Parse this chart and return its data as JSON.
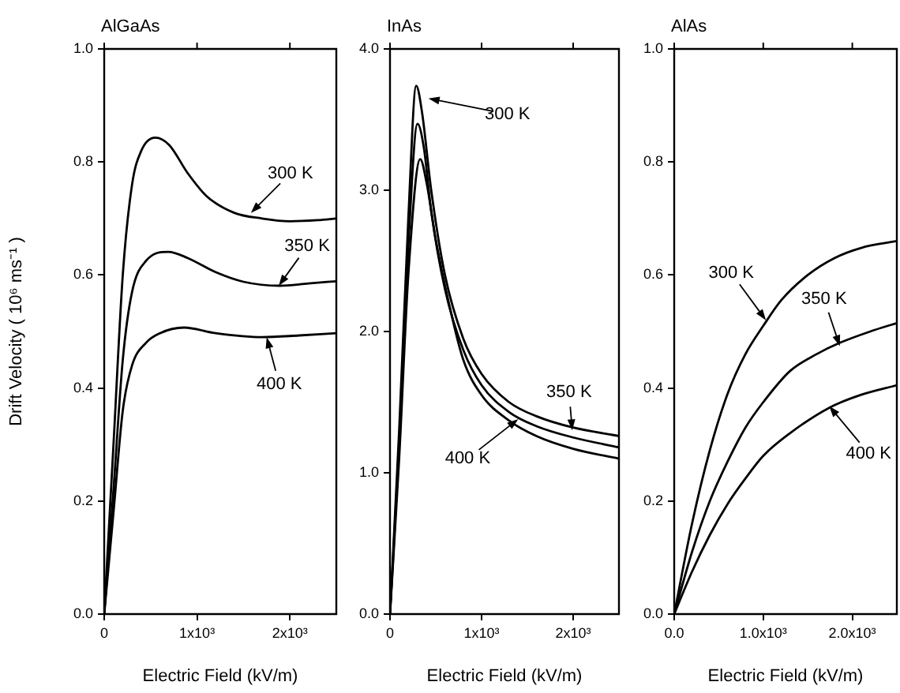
{
  "chart_data": [
    {
      "type": "line",
      "title": "AlGaAs",
      "xlabel": "Electric Field (kV/m)",
      "ylabel": "Drift Velocity ( 10⁶ ms⁻¹ )",
      "xlim": [
        0,
        2500
      ],
      "xticks": [
        0,
        {
          "value": 1000,
          "label": "1x10³"
        },
        {
          "value": 2000,
          "label": "2x10³"
        }
      ],
      "ylim": [
        0,
        1
      ],
      "yticks": [
        {
          "value": 0,
          "label": "0.0"
        },
        0.2,
        0.4,
        0.6,
        0.8,
        {
          "value": 1,
          "label": "1.0"
        }
      ],
      "grid": false,
      "legend": false,
      "marker": "none",
      "line_style": "solid",
      "series": [
        {
          "color": "#000000",
          "x": [
            0,
            100,
            200,
            300,
            400,
            550,
            700,
            900,
            1100,
            1400,
            1700,
            2000,
            2300,
            2500
          ],
          "values": [
            0,
            0.3,
            0.6,
            0.76,
            0.82,
            0.843,
            0.83,
            0.78,
            0.74,
            0.71,
            0.7,
            0.695,
            0.697,
            0.7
          ]
        },
        {
          "color": "#000000",
          "x": [
            0,
            100,
            200,
            300,
            450,
            690,
            900,
            1200,
            1500,
            1890,
            2200,
            2500
          ],
          "values": [
            0,
            0.22,
            0.45,
            0.57,
            0.625,
            0.641,
            0.63,
            0.605,
            0.588,
            0.581,
            0.585,
            0.589
          ]
        },
        {
          "color": "#000000",
          "x": [
            0,
            100,
            200,
            300,
            450,
            600,
            860,
            1200,
            1700,
            2100,
            2500
          ],
          "values": [
            0,
            0.18,
            0.36,
            0.44,
            0.48,
            0.497,
            0.507,
            0.497,
            0.49,
            0.493,
            0.497
          ]
        }
      ],
      "annotations": [
        {
          "text": "300 K",
          "x": 1580,
          "y": 0.71
        },
        {
          "text": "350 K",
          "x": 1880,
          "y": 0.581
        },
        {
          "text": "400 K",
          "x": 1750,
          "y": 0.49
        }
      ]
    },
    {
      "type": "line",
      "title": "InAs",
      "xlabel": "Electric Field (kV/m)",
      "xlim": [
        0,
        2500
      ],
      "xticks": [
        0,
        {
          "value": 1000,
          "label": "1x10³"
        },
        {
          "value": 2000,
          "label": "2x10³"
        }
      ],
      "ylim": [
        0,
        4
      ],
      "yticks": [
        {
          "value": 0,
          "label": "0.0"
        },
        {
          "value": 1,
          "label": "1.0"
        },
        {
          "value": 2,
          "label": "2.0"
        },
        {
          "value": 3,
          "label": "3.0"
        },
        {
          "value": 4,
          "label": "4.0"
        }
      ],
      "grid": false,
      "legend": false,
      "marker": "none",
      "line_style": "solid",
      "series": [
        {
          "color": "#000000",
          "x": [
            0,
            100,
            200,
            286,
            350,
            450,
            600,
            800,
            1000,
            1300,
            1600,
            2000,
            2500
          ],
          "values": [
            0,
            1.3,
            2.8,
            3.74,
            3.55,
            3.0,
            2.4,
            1.95,
            1.7,
            1.5,
            1.4,
            1.32,
            1.26
          ]
        },
        {
          "color": "#000000",
          "x": [
            0,
            100,
            200,
            300,
            370,
            450,
            600,
            800,
            1000,
            1300,
            1600,
            2000,
            2500
          ],
          "values": [
            0,
            1.2,
            2.6,
            3.47,
            3.3,
            2.85,
            2.3,
            1.87,
            1.62,
            1.43,
            1.33,
            1.25,
            1.18
          ]
        },
        {
          "color": "#000000",
          "x": [
            0,
            100,
            200,
            330,
            400,
            500,
            650,
            800,
            1000,
            1300,
            1600,
            2000,
            2500
          ],
          "values": [
            0,
            1.1,
            2.4,
            3.22,
            3.05,
            2.65,
            2.18,
            1.8,
            1.55,
            1.37,
            1.26,
            1.17,
            1.1
          ]
        }
      ],
      "annotations": [
        {
          "text": "300 K",
          "x": 420,
          "y": 3.65
        },
        {
          "text": "350 K",
          "x": 1990,
          "y": 1.3
        },
        {
          "text": "400 K",
          "x": 1400,
          "y": 1.38
        }
      ]
    },
    {
      "type": "line",
      "title": "AlAs",
      "xlabel": "Electric Field (kV/m)",
      "xlim": [
        0,
        2500
      ],
      "xticks": [
        {
          "value": 0,
          "label": "0.0"
        },
        {
          "value": 1000,
          "label": "1.0x10³"
        },
        {
          "value": 2000,
          "label": "2.0x10³"
        }
      ],
      "ylim": [
        0,
        1
      ],
      "yticks": [
        {
          "value": 0,
          "label": "0.0"
        },
        0.2,
        0.4,
        0.6,
        0.8,
        {
          "value": 1,
          "label": "1.0"
        }
      ],
      "grid": false,
      "legend": false,
      "marker": "none",
      "line_style": "solid",
      "series": [
        {
          "color": "#000000",
          "x": [
            0,
            200,
            400,
            600,
            800,
            1000,
            1200,
            1500,
            1800,
            2100,
            2500
          ],
          "values": [
            0,
            0.16,
            0.29,
            0.39,
            0.46,
            0.51,
            0.555,
            0.6,
            0.63,
            0.648,
            0.66
          ]
        },
        {
          "color": "#000000",
          "x": [
            0,
            200,
            400,
            600,
            800,
            1000,
            1300,
            1600,
            1860,
            2200,
            2500
          ],
          "values": [
            0,
            0.11,
            0.2,
            0.27,
            0.33,
            0.375,
            0.43,
            0.46,
            0.48,
            0.5,
            0.515
          ]
        },
        {
          "color": "#000000",
          "x": [
            0,
            200,
            400,
            600,
            800,
            1000,
            1300,
            1740,
            2100,
            2500
          ],
          "values": [
            0,
            0.075,
            0.14,
            0.195,
            0.24,
            0.28,
            0.32,
            0.365,
            0.388,
            0.405
          ]
        }
      ],
      "annotations": [
        {
          "text": "300 K",
          "x": 1030,
          "y": 0.52
        },
        {
          "text": "350 K",
          "x": 1860,
          "y": 0.474
        },
        {
          "text": "400 K",
          "x": 1740,
          "y": 0.368
        }
      ]
    }
  ]
}
